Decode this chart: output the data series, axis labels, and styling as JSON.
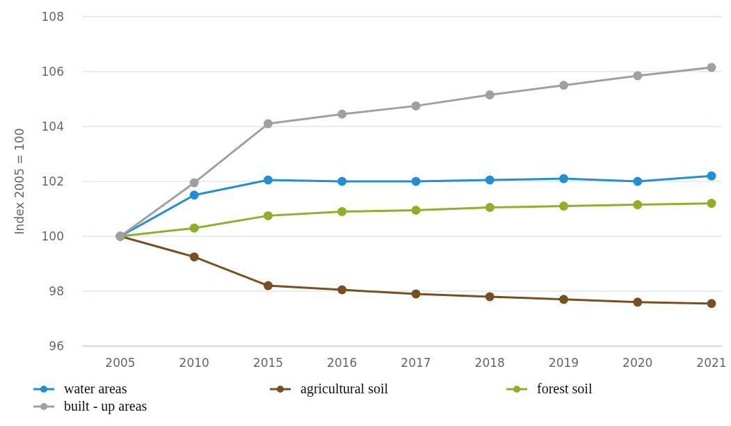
{
  "chart_data": {
    "type": "line",
    "ylabel": "Index 2005 = 100",
    "categories": [
      "2005",
      "2010",
      "2015",
      "2016",
      "2017",
      "2018",
      "2019",
      "2020",
      "2021"
    ],
    "series": [
      {
        "name": "water areas",
        "color": "#1f8fd6",
        "values": [
          100,
          101.5,
          102.05,
          102.0,
          102.0,
          102.05,
          102.1,
          102.0,
          102.2
        ]
      },
      {
        "name": "agricultural soil",
        "color": "#7a4f1e",
        "values": [
          100,
          99.25,
          98.2,
          98.05,
          97.9,
          97.8,
          97.7,
          97.6,
          97.55
        ]
      },
      {
        "name": "forest soil",
        "color": "#8db024",
        "values": [
          100,
          100.3,
          100.75,
          100.9,
          100.95,
          101.05,
          101.1,
          101.15,
          101.2
        ]
      },
      {
        "name": "built - up areas",
        "color": "#a0a0a0",
        "values": [
          100,
          101.95,
          104.1,
          104.45,
          104.75,
          105.15,
          105.5,
          105.85,
          106.15
        ]
      }
    ],
    "ylim": [
      96,
      108
    ],
    "yticks": [
      96,
      98,
      100,
      102,
      104,
      106,
      108
    ],
    "grid": "y",
    "legend": "bottom",
    "marker": "circle",
    "line_style": "solid"
  }
}
